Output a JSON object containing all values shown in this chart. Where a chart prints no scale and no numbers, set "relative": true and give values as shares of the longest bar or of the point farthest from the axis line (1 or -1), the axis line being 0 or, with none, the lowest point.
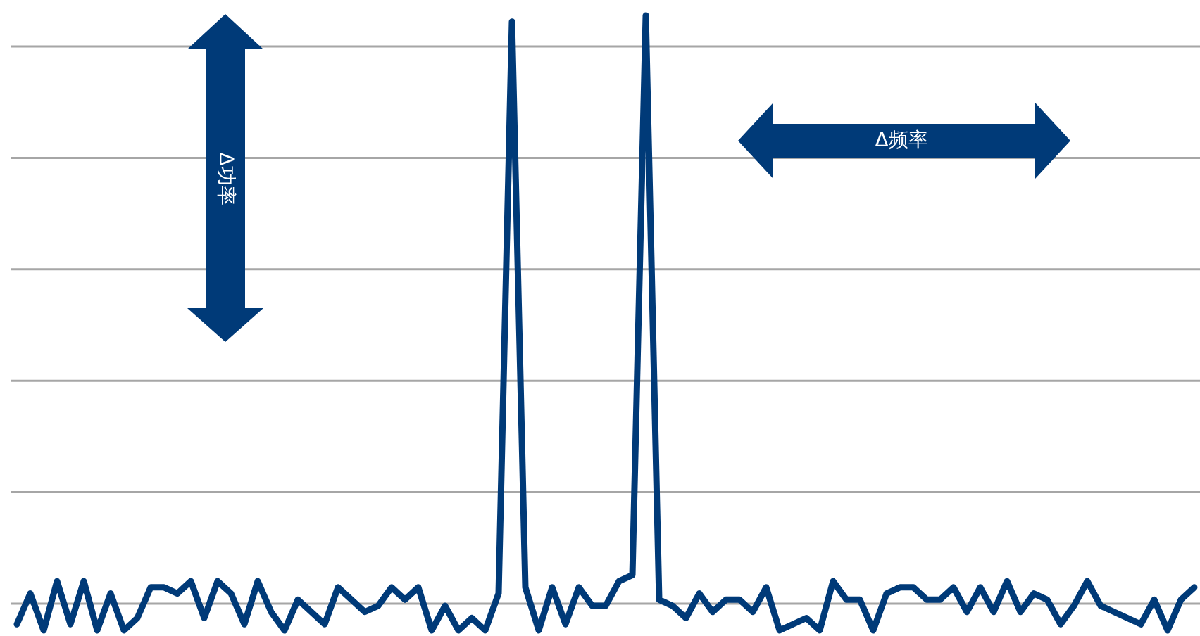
{
  "chart_data": {
    "type": "line",
    "relative": true,
    "grid": "y",
    "categories": [
      null,
      null,
      null,
      null,
      null,
      null,
      null,
      null,
      null,
      null,
      null,
      null,
      null,
      null,
      null,
      null,
      null,
      null,
      null,
      null,
      null,
      null,
      null,
      null,
      null,
      null,
      null,
      null,
      null,
      null,
      null,
      null,
      null,
      null,
      null,
      null,
      null,
      null,
      null,
      null,
      null,
      null,
      null,
      null,
      null,
      null,
      null,
      null,
      null,
      null,
      null,
      null,
      null,
      null,
      null,
      null,
      null,
      null,
      null,
      null,
      null,
      null,
      null,
      null,
      null,
      null,
      null,
      null,
      null,
      null,
      null,
      null,
      null,
      null,
      null,
      null,
      null,
      null,
      null,
      null,
      null,
      null,
      null,
      null,
      null,
      null,
      null,
      null,
      null
    ],
    "series": [
      {
        "color": "#003a78",
        "values": [
          0.01,
          0.06,
          0,
          0.08,
          0.01,
          0.08,
          0,
          0.06,
          0,
          0.02,
          0.07,
          0.07,
          0.06,
          0.08,
          0.02,
          0.08,
          0.06,
          0.01,
          0.08,
          0.03,
          0,
          0.05,
          0.03,
          0.01,
          0.07,
          0.05,
          0.03,
          0.04,
          0.07,
          0.05,
          0.07,
          0,
          0.04,
          0,
          0.02,
          0,
          0.06,
          0.99,
          0.07,
          0,
          0.07,
          0.01,
          0.07,
          0.04,
          0.04,
          0.08,
          0.09,
          1,
          0.05,
          0.04,
          0.02,
          0.06,
          0.03,
          0.05,
          0.05,
          0.03,
          0.07,
          0,
          0.01,
          0.02,
          0,
          0.08,
          0.05,
          0.05,
          0,
          0.06,
          0.07,
          0.07,
          0.05,
          0.05,
          0.07,
          0.03,
          0.07,
          0.03,
          0.08,
          0.03,
          0.06,
          0.05,
          0.01,
          0.04,
          0.08,
          0.04,
          0.03,
          0.02,
          0.01,
          0.05,
          0,
          0.05,
          0.07
        ]
      }
    ],
    "annotations": [
      "Δ功率",
      "Δ频率"
    ]
  }
}
